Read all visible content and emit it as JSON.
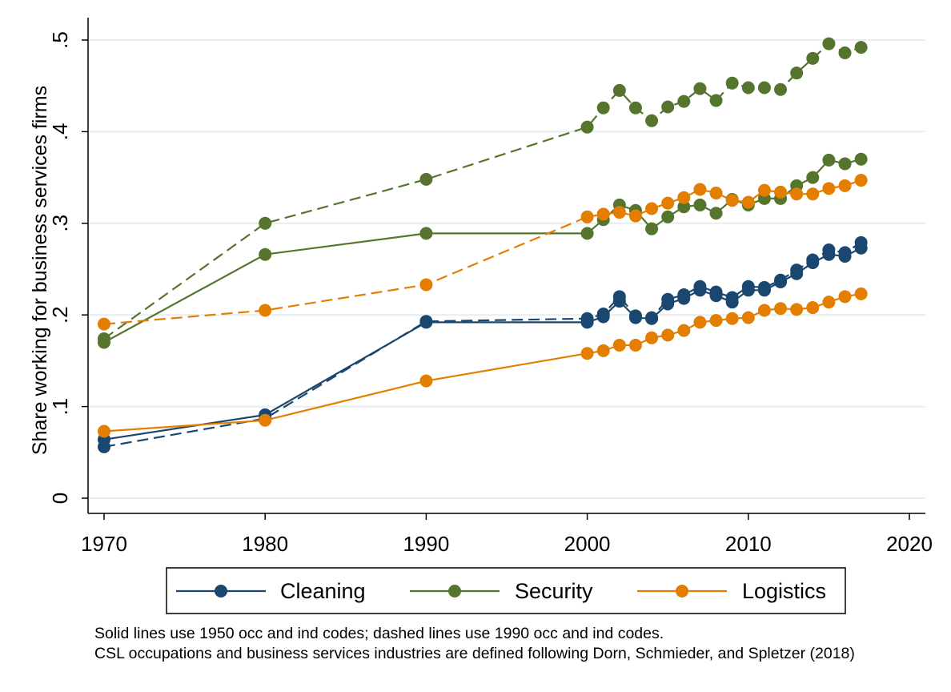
{
  "chart_data": {
    "type": "line",
    "ylabel": "Share working for business services firms",
    "xlabel": "",
    "xlim": [
      1970,
      2020
    ],
    "ylim": [
      0,
      0.5
    ],
    "x_ticks": [
      1970,
      1980,
      1990,
      2000,
      2010,
      2020
    ],
    "x_tick_labels": [
      "1970",
      "1980",
      "1990",
      "2000",
      "2010",
      "2020"
    ],
    "y_ticks": [
      0,
      0.1,
      0.2,
      0.3,
      0.4,
      0.5
    ],
    "y_tick_labels": [
      "0",
      ".1",
      ".2",
      ".3",
      ".4",
      ".5"
    ],
    "grid": "horizontal",
    "legend_position": "bottom",
    "legend": [
      {
        "name": "Cleaning",
        "color": "#1a476f"
      },
      {
        "name": "Security",
        "color": "#55752f"
      },
      {
        "name": "Logistics",
        "color": "#e37e00"
      }
    ],
    "series": [
      {
        "group": "Cleaning",
        "style": "solid",
        "color": "#1a476f",
        "x": [
          1970,
          1980,
          1990,
          2000,
          2001,
          2002,
          2003,
          2004,
          2005,
          2006,
          2007,
          2008,
          2009,
          2010,
          2011,
          2012,
          2013,
          2014,
          2015,
          2016,
          2017
        ],
        "y": [
          0.064,
          0.091,
          0.192,
          0.192,
          0.198,
          0.215,
          0.197,
          0.196,
          0.212,
          0.218,
          0.227,
          0.221,
          0.214,
          0.227,
          0.227,
          0.236,
          0.245,
          0.257,
          0.266,
          0.264,
          0.273
        ]
      },
      {
        "group": "Cleaning",
        "style": "dashed",
        "color": "#1a476f",
        "x": [
          1970,
          1980,
          1990,
          2000,
          2001,
          2002,
          2003,
          2004,
          2005,
          2006,
          2007,
          2008,
          2009,
          2010,
          2011,
          2012,
          2013,
          2014,
          2015,
          2016,
          2017
        ],
        "y": [
          0.056,
          0.087,
          0.193,
          0.196,
          0.201,
          0.22,
          0.199,
          0.197,
          0.217,
          0.222,
          0.231,
          0.225,
          0.219,
          0.231,
          0.23,
          0.238,
          0.249,
          0.26,
          0.271,
          0.268,
          0.279
        ]
      },
      {
        "group": "Security",
        "style": "solid",
        "color": "#55752f",
        "x": [
          1970,
          1980,
          1990,
          2000,
          2001,
          2002,
          2003,
          2004,
          2005,
          2006,
          2007,
          2008,
          2009,
          2010,
          2011,
          2012,
          2013,
          2014,
          2015,
          2016,
          2017
        ],
        "y": [
          0.17,
          0.266,
          0.289,
          0.289,
          0.304,
          0.32,
          0.314,
          0.294,
          0.307,
          0.318,
          0.32,
          0.311,
          0.326,
          0.32,
          0.327,
          0.327,
          0.341,
          0.35,
          0.369,
          0.365,
          0.37
        ]
      },
      {
        "group": "Security",
        "style": "dashed",
        "color": "#55752f",
        "x": [
          1970,
          1980,
          1990,
          2000,
          2001,
          2002,
          2003,
          2004,
          2005,
          2006,
          2007,
          2008,
          2009,
          2010,
          2011,
          2012,
          2013,
          2014,
          2015,
          2016,
          2017
        ],
        "y": [
          0.174,
          0.3,
          0.348,
          0.405,
          0.426,
          0.445,
          0.426,
          0.412,
          0.427,
          0.433,
          0.447,
          0.434,
          0.453,
          0.448,
          0.448,
          0.446,
          0.464,
          0.48,
          0.496,
          0.486,
          0.492
        ]
      },
      {
        "group": "Logistics",
        "style": "solid",
        "color": "#e37e00",
        "x": [
          1970,
          1980,
          1990,
          2000,
          2001,
          2002,
          2003,
          2004,
          2005,
          2006,
          2007,
          2008,
          2009,
          2010,
          2011,
          2012,
          2013,
          2014,
          2015,
          2016,
          2017
        ],
        "y": [
          0.073,
          0.085,
          0.128,
          0.158,
          0.161,
          0.167,
          0.167,
          0.175,
          0.178,
          0.183,
          0.192,
          0.194,
          0.196,
          0.197,
          0.205,
          0.207,
          0.206,
          0.208,
          0.214,
          0.22,
          0.223
        ]
      },
      {
        "group": "Logistics",
        "style": "dashed",
        "color": "#e37e00",
        "x": [
          1970,
          1980,
          1990,
          2000,
          2001,
          2002,
          2003,
          2004,
          2005,
          2006,
          2007,
          2008,
          2009,
          2010,
          2011,
          2012,
          2013,
          2014,
          2015,
          2016,
          2017
        ],
        "y": [
          0.19,
          0.205,
          0.233,
          0.307,
          0.31,
          0.312,
          0.308,
          0.316,
          0.322,
          0.328,
          0.337,
          0.333,
          0.325,
          0.323,
          0.336,
          0.334,
          0.332,
          0.332,
          0.338,
          0.341,
          0.347
        ]
      }
    ]
  },
  "notes": [
    "Solid lines use 1950 occ and ind codes; dashed lines use 1990 occ and ind codes.",
    "CSL occupations and business services industries are defined following Dorn, Schmieder, and Spletzer (2018)"
  ]
}
